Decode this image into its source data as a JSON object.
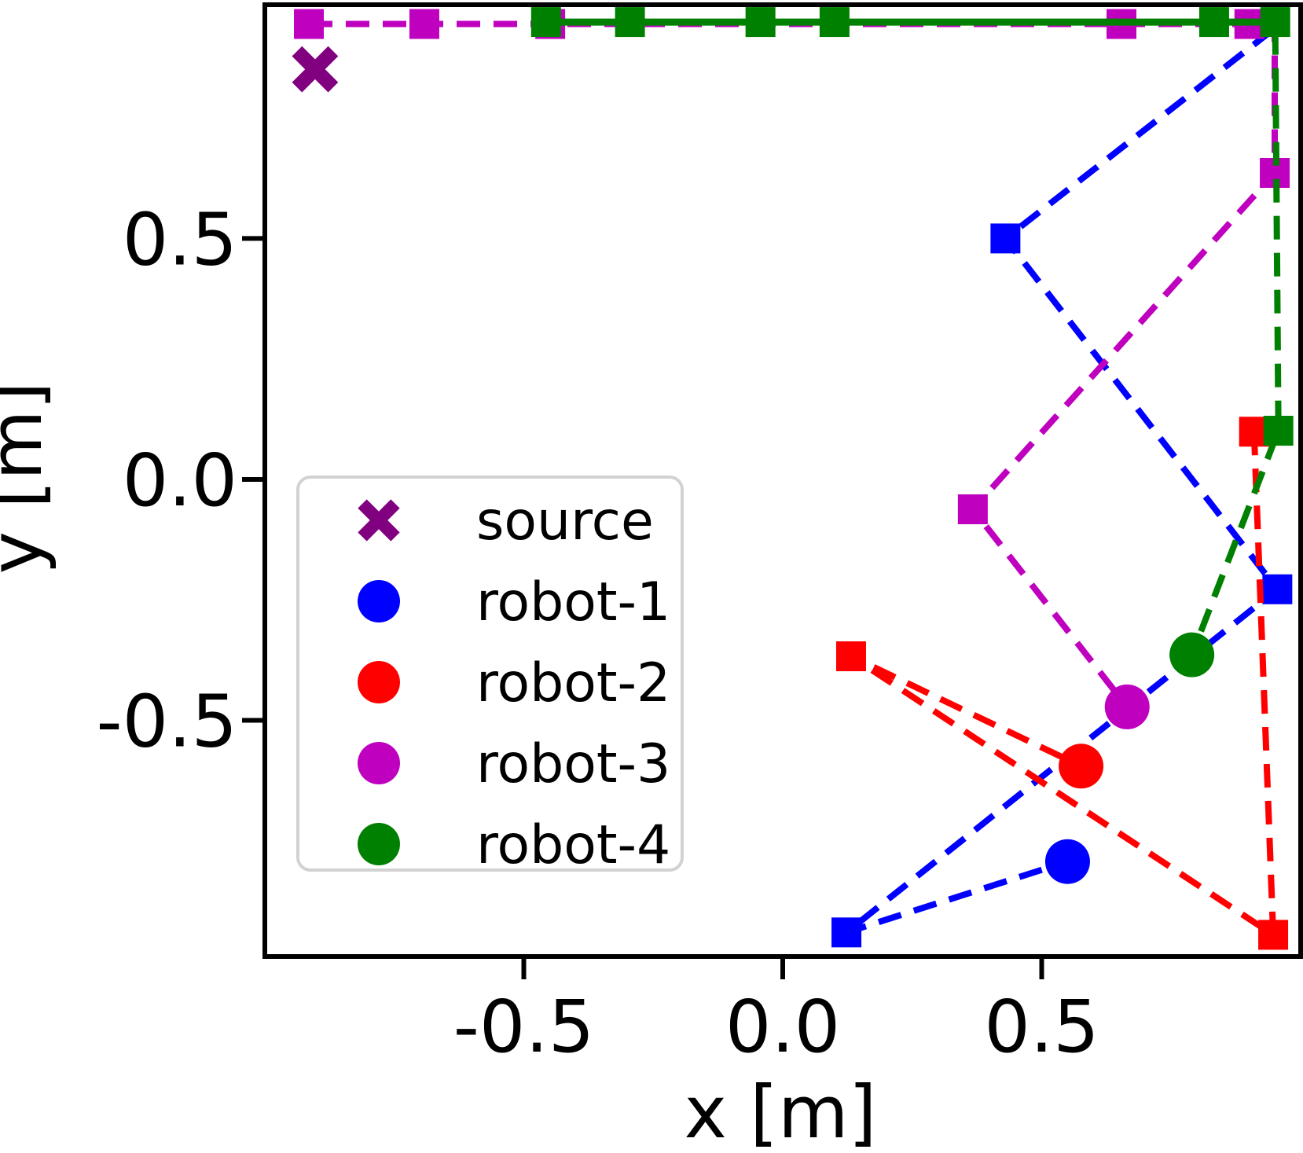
{
  "chart_data": {
    "type": "scatter",
    "title": "",
    "xlabel": "x [m]",
    "ylabel": "y [m]",
    "xlim": [
      -1.0,
      1.0
    ],
    "ylim": [
      -0.99,
      0.985
    ],
    "grid": false,
    "x_ticks": {
      "values": [
        -0.5,
        0.0,
        0.5
      ],
      "labels": [
        "-0.5",
        "0.0",
        "0.5"
      ]
    },
    "y_ticks": {
      "values": [
        0.5,
        0.0,
        -0.5
      ],
      "labels": [
        "0.5",
        "0.0",
        "-0.5"
      ]
    },
    "marker_legend": "squares = waypoints (dashed planned path, solid traveled path), large circle = robot current position, X = source",
    "source": {
      "label": "source",
      "color": "#800080",
      "marker": "X",
      "position": {
        "x": -0.903,
        "y": 0.851
      }
    },
    "robots": [
      {
        "name": "robot-1",
        "color": "#0000ff",
        "line_style": "dashed",
        "current_position": {
          "x": 0.55,
          "y": -0.793
        },
        "waypoints": [
          {
            "x": 0.43,
            "y": 0.5
          },
          {
            "x": 0.955,
            "y": -0.228
          },
          {
            "x": 0.123,
            "y": -0.94
          }
        ],
        "planned_path": [
          {
            "x": 0.945,
            "y": 0.932
          },
          {
            "x": 0.43,
            "y": 0.5
          },
          {
            "x": 0.955,
            "y": -0.228
          },
          {
            "x": 0.123,
            "y": -0.94
          },
          {
            "x": 0.55,
            "y": -0.793
          }
        ]
      },
      {
        "name": "robot-2",
        "color": "#ff0000",
        "line_style": "dashed",
        "current_position": {
          "x": 0.576,
          "y": -0.595
        },
        "waypoints": [
          {
            "x": 0.91,
            "y": 0.099
          },
          {
            "x": 0.947,
            "y": -0.945
          },
          {
            "x": 0.132,
            "y": -0.367
          }
        ],
        "planned_path": [
          {
            "x": 0.91,
            "y": 0.099
          },
          {
            "x": 0.947,
            "y": -0.945
          },
          {
            "x": 0.132,
            "y": -0.367
          },
          {
            "x": 0.576,
            "y": -0.595
          }
        ]
      },
      {
        "name": "robot-3",
        "color": "#bf00bf",
        "line_style": "dashed",
        "current_position": {
          "x": 0.665,
          "y": -0.472
        },
        "waypoints": [
          {
            "x": -0.915,
            "y": 0.945
          },
          {
            "x": -0.692,
            "y": 0.945
          },
          {
            "x": -0.449,
            "y": 0.945
          },
          {
            "x": 0.654,
            "y": 0.945
          },
          {
            "x": 0.901,
            "y": 0.945
          },
          {
            "x": 0.95,
            "y": 0.636
          },
          {
            "x": 0.367,
            "y": -0.062
          }
        ],
        "planned_path": [
          {
            "x": -0.915,
            "y": 0.945
          },
          {
            "x": 0.95,
            "y": 0.945
          },
          {
            "x": 0.95,
            "y": 0.636
          },
          {
            "x": 0.367,
            "y": -0.062
          },
          {
            "x": 0.665,
            "y": -0.472
          }
        ]
      },
      {
        "name": "robot-4",
        "color": "#008000",
        "line_style": "solid+dashed",
        "current_position": {
          "x": 0.79,
          "y": -0.364
        },
        "waypoints": [
          {
            "x": -0.457,
            "y": 0.949
          },
          {
            "x": -0.295,
            "y": 0.949
          },
          {
            "x": -0.043,
            "y": 0.949
          },
          {
            "x": 0.1,
            "y": 0.949
          },
          {
            "x": 0.833,
            "y": 0.949
          },
          {
            "x": 0.951,
            "y": 0.949
          },
          {
            "x": 0.957,
            "y": 0.101
          }
        ],
        "traveled_path": [
          {
            "x": -0.457,
            "y": 0.949
          },
          {
            "x": 0.951,
            "y": 0.949
          }
        ],
        "planned_path": [
          {
            "x": 0.951,
            "y": 0.93
          },
          {
            "x": 0.957,
            "y": 0.101
          },
          {
            "x": 0.79,
            "y": -0.364
          }
        ]
      }
    ]
  },
  "legend": {
    "position": "lower-left-inside",
    "entries": [
      {
        "label": "source",
        "marker": "X",
        "color": "#800080"
      },
      {
        "label": "robot-1",
        "marker": "circle",
        "color": "#0000ff"
      },
      {
        "label": "robot-2",
        "marker": "circle",
        "color": "#ff0000"
      },
      {
        "label": "robot-3",
        "marker": "circle",
        "color": "#bf00bf"
      },
      {
        "label": "robot-4",
        "marker": "circle",
        "color": "#008000"
      }
    ]
  }
}
